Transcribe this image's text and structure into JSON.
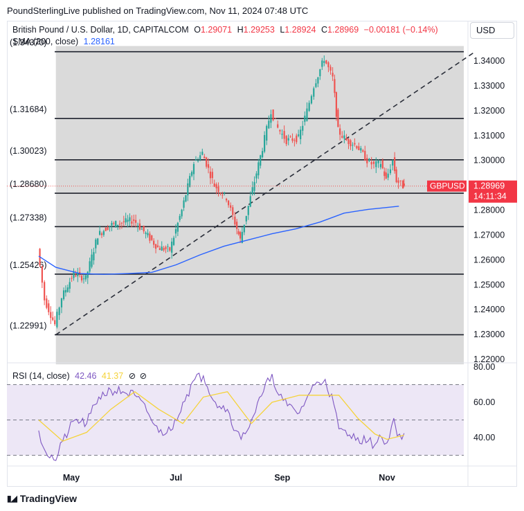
{
  "header": {
    "published_line": "PoundSterlingLive published on TradingView.com, Nov 11, 2024 07:48 UTC",
    "currency_button": "USD"
  },
  "legend": {
    "symbol": "British Pound / U.S. Dollar, 1D, CAPITALCOM",
    "open_label": "O",
    "open": "1.29071",
    "high_label": "H",
    "high": "1.29253",
    "low_label": "L",
    "low": "1.28924",
    "close_label": "C",
    "close": "1.28969",
    "change": "−0.00181 (−0.14%)",
    "sma_label": "SMA (200, close)",
    "sma_value": "1.28161",
    "rsi_label": "RSI (14, close)",
    "rsi_value": "42.46",
    "rsi_ma_value": "41.37"
  },
  "price_tag": {
    "symbol": "GBPUSD",
    "price": "1.28969",
    "countdown": "14:11:34"
  },
  "footer": {
    "brand": "TradingView"
  },
  "colors": {
    "up": "#26a69a",
    "down": "#ef5350",
    "sma": "#2962ff",
    "rsi": "#7e57c2",
    "rsi_ma": "#f5d33a",
    "grey_zone": "#dadada",
    "rsi_band": "#ede7f6",
    "price_tag": "#f23645"
  },
  "chart_data": [
    {
      "type": "candlestick",
      "title": "British Pound / U.S. Dollar, 1D, CAPITALCOM",
      "x_labels": [
        "May",
        "Jul",
        "Sep",
        "Nov"
      ],
      "y_ticks": [
        1.22,
        1.23,
        1.24,
        1.25,
        1.26,
        1.27,
        1.28,
        1.29,
        1.3,
        1.31,
        1.32,
        1.33,
        1.34
      ],
      "y_tick_labels": [
        "1.22000",
        "1.23000",
        "1.24000",
        "1.25000",
        "1.26000",
        "1.27000",
        "1.28000",
        "1.29000",
        "1.30000",
        "1.31000",
        "1.32000",
        "1.33000",
        "1.34000"
      ],
      "ylim": [
        1.218,
        1.346
      ],
      "horizontal_levels": [
        {
          "value": 1.3437,
          "label": "(1.34370)"
        },
        {
          "value": 1.31684,
          "label": "(1.31684)"
        },
        {
          "value": 1.30023,
          "label": "(1.30023)"
        },
        {
          "value": 1.2868,
          "label": "(1.28680)"
        },
        {
          "value": 1.27338,
          "label": "(1.27338)"
        },
        {
          "value": 1.25426,
          "label": "(1.25426)"
        },
        {
          "value": 1.22991,
          "label": "(1.22991)"
        }
      ],
      "trendline": {
        "start": [
          "Apr 22",
          1.2299
        ],
        "end": [
          "Nov 8",
          1.3437
        ]
      },
      "grey_zone": {
        "from": "Apr 22",
        "to": "Nov 11",
        "ylim": [
          1.218,
          1.346
        ]
      },
      "sma_200": [
        [
          "Apr 12",
          1.2615
        ],
        [
          "Apr 22",
          1.257
        ],
        [
          "May 6",
          1.2545
        ],
        [
          "May 20",
          1.2542
        ],
        [
          "Jun 3",
          1.2545
        ],
        [
          "Jun 17",
          1.255
        ],
        [
          "Jul 1",
          1.258
        ],
        [
          "Jul 15",
          1.262
        ],
        [
          "Jul 29",
          1.2655
        ],
        [
          "Aug 12",
          1.268
        ],
        [
          "Aug 26",
          1.2705
        ],
        [
          "Sep 9",
          1.2725
        ],
        [
          "Sep 23",
          1.2752
        ],
        [
          "Oct 7",
          1.2788
        ],
        [
          "Oct 21",
          1.2803
        ],
        [
          "Nov 8",
          1.2816
        ]
      ],
      "last_price": 1.28969,
      "close_path": [
        [
          "Apr 12",
          1.2645
        ],
        [
          "Apr 16",
          1.244
        ],
        [
          "Apr 22",
          1.234
        ],
        [
          "Apr 26",
          1.245
        ],
        [
          "May 3",
          1.2545
        ],
        [
          "May 10",
          1.2525
        ],
        [
          "May 17",
          1.27
        ],
        [
          "May 24",
          1.274
        ],
        [
          "May 31",
          1.275
        ],
        [
          "Jun 7",
          1.276
        ],
        [
          "Jun 14",
          1.2705
        ],
        [
          "Jun 21",
          1.265
        ],
        [
          "Jun 28",
          1.264
        ],
        [
          "Jul 5",
          1.28
        ],
        [
          "Jul 12",
          1.299
        ],
        [
          "Jul 17",
          1.303
        ],
        [
          "Jul 24",
          1.29
        ],
        [
          "Jul 31",
          1.285
        ],
        [
          "Aug 5",
          1.275
        ],
        [
          "Aug 8",
          1.268
        ],
        [
          "Aug 14",
          1.285
        ],
        [
          "Aug 21",
          1.305
        ],
        [
          "Aug 26",
          1.32
        ],
        [
          "Aug 30",
          1.313
        ],
        [
          "Sep 4",
          1.308
        ],
        [
          "Sep 11",
          1.309
        ],
        [
          "Sep 16",
          1.32
        ],
        [
          "Sep 20",
          1.33
        ],
        [
          "Sep 26",
          1.341
        ],
        [
          "Oct 1",
          1.333
        ],
        [
          "Oct 4",
          1.312
        ],
        [
          "Oct 9",
          1.308
        ],
        [
          "Oct 15",
          1.306
        ],
        [
          "Oct 21",
          1.3
        ],
        [
          "Oct 25",
          1.298
        ],
        [
          "Oct 29",
          1.299
        ],
        [
          "Nov 1",
          1.292
        ],
        [
          "Nov 5",
          1.3
        ],
        [
          "Nov 7",
          1.292
        ],
        [
          "Nov 11",
          1.28969
        ]
      ]
    },
    {
      "type": "line",
      "title": "RSI (14, close)",
      "y_ticks": [
        40,
        60,
        80
      ],
      "y_tick_labels": [
        "40.00",
        "60.00",
        "80.00"
      ],
      "bands": [
        30,
        50,
        70
      ],
      "ylim": [
        25,
        80
      ],
      "series": [
        {
          "name": "RSI",
          "points": [
            [
              "Apr 12",
              44
            ],
            [
              "Apr 16",
              32
            ],
            [
              "Apr 22",
              27
            ],
            [
              "Apr 26",
              38
            ],
            [
              "May 3",
              50
            ],
            [
              "May 10",
              48
            ],
            [
              "May 17",
              63
            ],
            [
              "May 24",
              67
            ],
            [
              "May 31",
              66
            ],
            [
              "Jun 7",
              64
            ],
            [
              "Jun 14",
              55
            ],
            [
              "Jun 21",
              43
            ],
            [
              "Jun 28",
              44
            ],
            [
              "Jul 5",
              60
            ],
            [
              "Jul 12",
              73
            ],
            [
              "Jul 17",
              75
            ],
            [
              "Jul 24",
              60
            ],
            [
              "Jul 31",
              56
            ],
            [
              "Aug 5",
              44
            ],
            [
              "Aug 8",
              39
            ],
            [
              "Aug 14",
              50
            ],
            [
              "Aug 21",
              66
            ],
            [
              "Aug 26",
              76
            ],
            [
              "Aug 30",
              64
            ],
            [
              "Sep 4",
              58
            ],
            [
              "Sep 11",
              54
            ],
            [
              "Sep 16",
              64
            ],
            [
              "Sep 20",
              70
            ],
            [
              "Sep 26",
              73
            ],
            [
              "Oct 1",
              59
            ],
            [
              "Oct 4",
              45
            ],
            [
              "Oct 9",
              41
            ],
            [
              "Oct 15",
              40
            ],
            [
              "Oct 21",
              38
            ],
            [
              "Oct 25",
              36
            ],
            [
              "Oct 29",
              40
            ],
            [
              "Nov 1",
              37
            ],
            [
              "Nov 5",
              51
            ],
            [
              "Nov 7",
              41
            ],
            [
              "Nov 11",
              42.46
            ]
          ]
        },
        {
          "name": "RSI MA",
          "points": [
            [
              "Apr 12",
              50
            ],
            [
              "Apr 26",
              38
            ],
            [
              "May 10",
              43
            ],
            [
              "May 24",
              56
            ],
            [
              "Jun 7",
              66
            ],
            [
              "Jun 21",
              56
            ],
            [
              "Jul 5",
              48
            ],
            [
              "Jul 17",
              63
            ],
            [
              "Jul 31",
              66
            ],
            [
              "Aug 14",
              48
            ],
            [
              "Aug 26",
              60
            ],
            [
              "Sep 11",
              64
            ],
            [
              "Sep 26",
              64
            ],
            [
              "Oct 4",
              64
            ],
            [
              "Oct 15",
              51
            ],
            [
              "Oct 25",
              42
            ],
            [
              "Nov 1",
              39
            ],
            [
              "Nov 11",
              41.37
            ]
          ]
        }
      ]
    }
  ]
}
